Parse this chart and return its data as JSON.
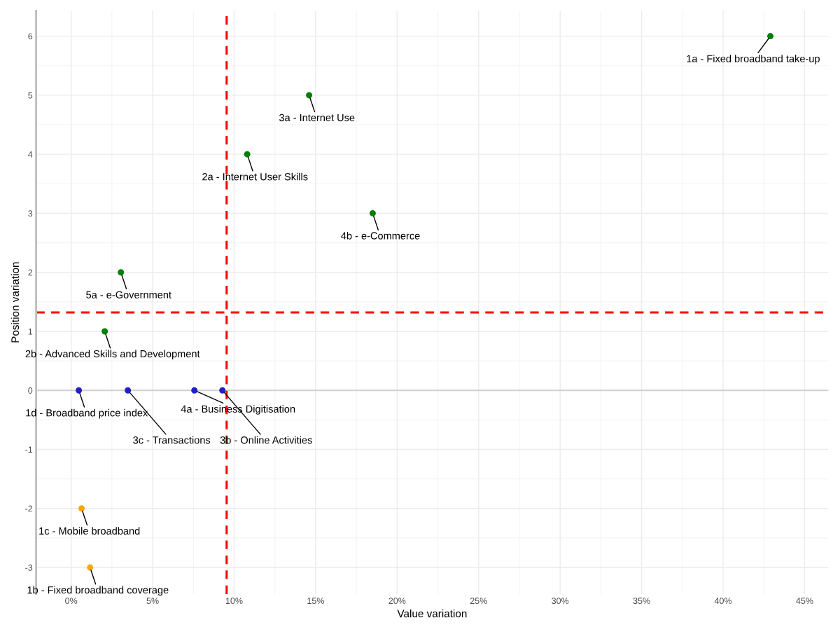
{
  "chart_data": {
    "type": "scatter",
    "xlabel": "Value variation",
    "ylabel": "Position variation",
    "series": [
      {
        "color": "#008000",
        "x": [
          42.9,
          14.6,
          10.8,
          18.5,
          3.05,
          2.06
        ],
        "values": [
          6,
          5,
          4,
          3,
          2,
          1
        ]
      },
      {
        "color": "#2020c8",
        "x": [
          0.47,
          3.48,
          7.56,
          9.28
        ],
        "values": [
          0,
          0,
          0,
          0
        ]
      },
      {
        "color": "#ffa500",
        "x": [
          0.64,
          1.16
        ],
        "values": [
          -2,
          -3
        ]
      }
    ],
    "annotations": [
      {
        "text": "1a - Fixed broadband take-up",
        "x": 42.9,
        "y": 6
      },
      {
        "text": "3a - Internet Use",
        "x": 14.6,
        "y": 5
      },
      {
        "text": "2a - Internet User Skills",
        "x": 10.8,
        "y": 4
      },
      {
        "text": "4b - e-Commerce",
        "x": 18.5,
        "y": 3
      },
      {
        "text": "5a - e-Government",
        "x": 3.05,
        "y": 2
      },
      {
        "text": "2b - Advanced Skills and Development",
        "x": 2.06,
        "y": 1
      },
      {
        "text": "1d - Broadband price index",
        "x": 0.47,
        "y": 0
      },
      {
        "text": "3c - Transactions",
        "x": 3.48,
        "y": 0
      },
      {
        "text": "4a - Business Digitisation",
        "x": 7.56,
        "y": 0
      },
      {
        "text": "3b - Online Activities",
        "x": 9.28,
        "y": 0
      },
      {
        "text": "1c - Mobile broadband",
        "x": 0.64,
        "y": -2
      },
      {
        "text": "1b - Fixed broadband coverage",
        "x": 1.16,
        "y": -3
      }
    ],
    "ref_lines": [
      {
        "axis": "x",
        "value": 9.54,
        "color": "#ff0000",
        "line_style": "dashed"
      },
      {
        "axis": "y",
        "value": 1.32,
        "color": "#ff0000",
        "line_style": "dashed"
      },
      {
        "axis": "y",
        "value": 0,
        "color": "#d0d0d0",
        "line_style": "solid"
      }
    ],
    "xlim": [
      -2.15,
      46.45
    ],
    "ylim": [
      -3.45,
      6.43
    ],
    "xticks": [
      {
        "value": 0,
        "label": "0%"
      },
      {
        "value": 5,
        "label": "5%"
      },
      {
        "value": 10,
        "label": "10%"
      },
      {
        "value": 15,
        "label": "15%"
      },
      {
        "value": 20,
        "label": "20%"
      },
      {
        "value": 25,
        "label": "25%"
      },
      {
        "value": 30,
        "label": "30%"
      },
      {
        "value": 35,
        "label": "35%"
      },
      {
        "value": 40,
        "label": "40%"
      },
      {
        "value": 45,
        "label": "45%"
      }
    ],
    "yticks": [
      -3,
      -2,
      -1,
      0,
      1,
      2,
      3,
      4,
      5,
      6
    ],
    "grid": true,
    "marker": "circle"
  }
}
